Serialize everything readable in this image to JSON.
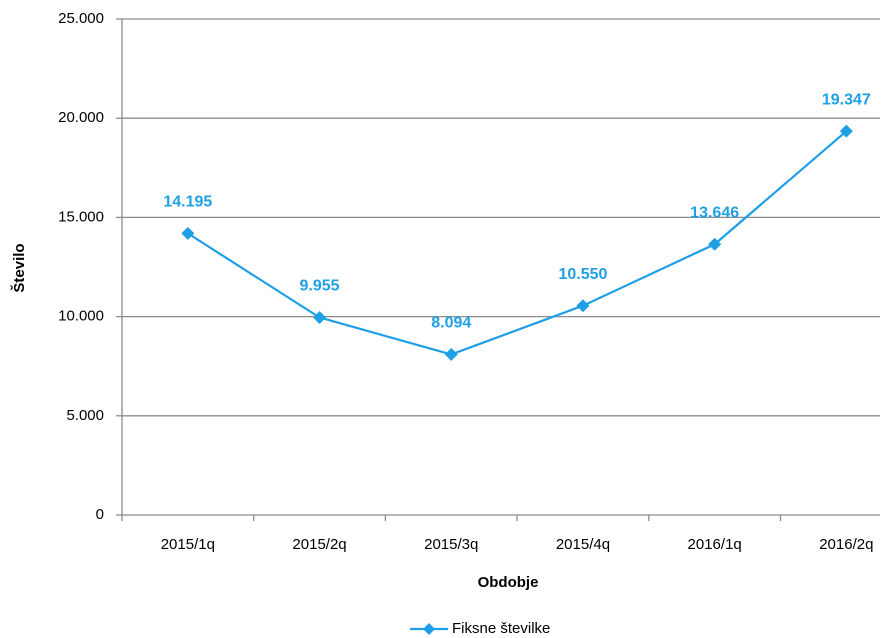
{
  "chart_data": {
    "type": "line",
    "x_label": "Obdobje",
    "y_label": "Število",
    "categories": [
      "2015/1q",
      "2015/2q",
      "2015/3q",
      "2015/4q",
      "2016/1q",
      "2016/2q"
    ],
    "series": [
      {
        "name": "Fiksne številke",
        "color": "#1e9fe6",
        "values": [
          14195,
          9955,
          8094,
          10550,
          13646,
          19347
        ],
        "value_labels": [
          "14.195",
          "9.955",
          "8.094",
          "10.550",
          "13.646",
          "19.347"
        ]
      }
    ],
    "ylim": [
      0,
      25000
    ],
    "yticks": [
      0,
      {
        "value": 5000,
        "label": "5.000"
      },
      {
        "value": 10000,
        "label": "10.000"
      },
      {
        "value": 15000,
        "label": "15.000"
      },
      {
        "value": 20000,
        "label": "20.000"
      },
      {
        "value": 25000,
        "label": "25.000"
      }
    ],
    "grid": true,
    "legend": "bottom"
  }
}
